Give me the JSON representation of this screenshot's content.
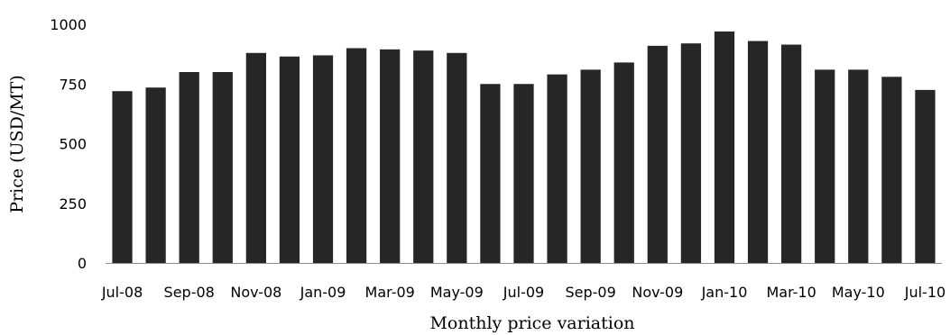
{
  "chart_data": {
    "type": "bar",
    "title": "",
    "xlabel": "Monthly price variation",
    "ylabel": "Price (USD/MT)",
    "ylim": [
      0,
      1000
    ],
    "yticks": [
      0,
      250,
      500,
      750,
      1000
    ],
    "grid": false,
    "bar_color": "#262626",
    "categories": [
      "Jul-08",
      "Aug-08",
      "Sep-08",
      "Oct-08",
      "Nov-08",
      "Dec-08",
      "Jan-09",
      "Feb-09",
      "Mar-09",
      "Apr-09",
      "May-09",
      "Jun-09",
      "Jul-09",
      "Aug-09",
      "Sep-09",
      "Oct-09",
      "Nov-09",
      "Dec-09",
      "Jan-10",
      "Feb-10",
      "Mar-10",
      "Apr-10",
      "May-10",
      "Jun-10",
      "Jul-10"
    ],
    "visible_category_labels": [
      "Jul-08",
      "Sep-08",
      "Nov-08",
      "Jan-09",
      "Mar-09",
      "May-09",
      "Jul-09",
      "Sep-09",
      "Nov-09",
      "Jan-10",
      "Mar-10",
      "May-10",
      "Jul-10"
    ],
    "values": [
      720,
      735,
      800,
      800,
      880,
      865,
      870,
      900,
      895,
      890,
      880,
      750,
      750,
      790,
      810,
      840,
      910,
      920,
      970,
      930,
      915,
      810,
      810,
      780,
      725
    ]
  }
}
